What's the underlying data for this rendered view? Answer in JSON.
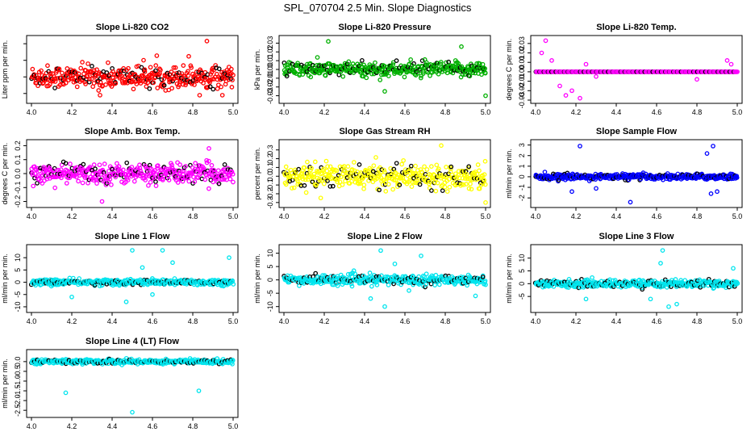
{
  "title": "SPL_070704  2.5 Min. Slope Diagnostics",
  "chart_data": [
    {
      "id": "p1",
      "type": "scatter",
      "title": "Slope Li-820 CO2",
      "ylabel": "Liter ppm per min.",
      "color": "#ff0000",
      "xlim": [
        4.0,
        5.0
      ],
      "ylim": [
        -0.7,
        1.15
      ],
      "yticks": [
        -0.5,
        0.0,
        0.5,
        1.0
      ],
      "ytick_labels": [
        "",
        "",
        "",
        ""
      ],
      "xticks": [
        4.0,
        4.2,
        4.4,
        4.6,
        4.8,
        5.0
      ],
      "xtick_labels": [
        "4.0",
        "4.2",
        "4.4",
        "4.6",
        "4.8",
        "5.0"
      ],
      "spread": 0.28,
      "n": 420,
      "outliers": [
        [
          4.87,
          1.08
        ],
        [
          4.78,
          0.62
        ],
        [
          4.34,
          -0.55
        ]
      ]
    },
    {
      "id": "p2",
      "type": "scatter",
      "title": "Slope Li-820 Pressure",
      "ylabel": "kPa per min.",
      "color": "#00b000",
      "xlim": [
        4.0,
        5.0
      ],
      "ylim": [
        -0.035,
        0.035
      ],
      "yticks": [
        -0.03,
        -0.02,
        -0.01,
        0.0,
        0.01,
        0.02,
        0.03
      ],
      "ytick_labels": [
        "-0.03",
        "-0.02",
        "-0.01",
        "0.00",
        "0.01",
        "0.02",
        "0.03"
      ],
      "xticks": [
        4.0,
        4.2,
        4.4,
        4.6,
        4.8,
        5.0
      ],
      "xtick_labels": [
        "4.0",
        "4.2",
        "4.4",
        "4.6",
        "4.8",
        "5.0"
      ],
      "spread": 0.007,
      "n": 420,
      "outliers": [
        [
          4.22,
          0.032
        ],
        [
          4.88,
          0.026
        ],
        [
          5.0,
          -0.03
        ],
        [
          4.5,
          -0.025
        ]
      ]
    },
    {
      "id": "p3",
      "type": "scatter",
      "title": "Slope Li-820 Temp.",
      "ylabel": "degrees C per min.",
      "color": "#ff00ff",
      "xlim": [
        4.0,
        5.0
      ],
      "ylim": [
        -0.03,
        0.035
      ],
      "yticks": [
        -0.03,
        -0.02,
        -0.01,
        0.0,
        0.01,
        0.02,
        0.03
      ],
      "ytick_labels": [
        "-0.03",
        "-0.02",
        "-0.01",
        "0.00",
        "0.01",
        "0.02",
        "0.03"
      ],
      "xticks": [
        4.0,
        4.2,
        4.4,
        4.6,
        4.8,
        5.0
      ],
      "xtick_labels": [
        "4.0",
        "4.2",
        "4.4",
        "4.6",
        "4.8",
        "5.0"
      ],
      "spread": 0.0,
      "n": 300,
      "outliers": [
        [
          4.05,
          0.033
        ],
        [
          4.03,
          0.02
        ],
        [
          4.08,
          0.012
        ],
        [
          4.15,
          -0.025
        ],
        [
          4.18,
          -0.02
        ],
        [
          4.22,
          -0.028
        ],
        [
          4.25,
          0.008
        ],
        [
          4.3,
          -0.005
        ],
        [
          4.12,
          -0.015
        ],
        [
          4.8,
          -0.008
        ],
        [
          4.95,
          0.012
        ],
        [
          4.97,
          0.008
        ]
      ]
    },
    {
      "id": "p4",
      "type": "scatter",
      "title": "Slope Amb. Box Temp.",
      "ylabel": "degrees C per min.",
      "color": "#ff00ff",
      "xlim": [
        4.0,
        5.0
      ],
      "ylim": [
        -0.22,
        0.22
      ],
      "yticks": [
        -0.2,
        -0.1,
        0.0,
        0.1,
        0.2
      ],
      "ytick_labels": [
        "-0.2",
        "-0.1",
        "0.0",
        "0.1",
        "0.2"
      ],
      "xticks": [
        4.0,
        4.2,
        4.4,
        4.6,
        4.8,
        5.0
      ],
      "xtick_labels": [
        "4.0",
        "4.2",
        "4.4",
        "4.6",
        "4.8",
        "5.0"
      ],
      "spread": 0.06,
      "n": 420,
      "outliers": [
        [
          4.35,
          -0.2
        ],
        [
          4.88,
          0.18
        ]
      ]
    },
    {
      "id": "p5",
      "type": "scatter",
      "title": "Slope Gas Stream RH",
      "ylabel": "percent per min.",
      "color": "#ffff00",
      "xlim": [
        4.0,
        5.0
      ],
      "ylim": [
        -0.32,
        0.38
      ],
      "yticks": [
        -0.3,
        -0.2,
        -0.1,
        0.0,
        0.1,
        0.2,
        0.3
      ],
      "ytick_labels": [
        "-0.3",
        "-0.2",
        "-0.1",
        "0.0",
        "0.1",
        "0.2",
        "0.3"
      ],
      "xticks": [
        4.0,
        4.2,
        4.4,
        4.6,
        4.8,
        5.0
      ],
      "xtick_labels": [
        "4.0",
        "4.2",
        "4.4",
        "4.6",
        "4.8",
        "5.0"
      ],
      "spread": 0.11,
      "n": 420,
      "outliers": [
        [
          5.0,
          -0.3
        ],
        [
          4.78,
          0.35
        ]
      ]
    },
    {
      "id": "p6",
      "type": "scatter",
      "title": "Slope Sample Flow",
      "ylabel": "ml/min per min.",
      "color": "#0000ff",
      "xlim": [
        4.0,
        5.0
      ],
      "ylim": [
        -2.6,
        3.2
      ],
      "yticks": [
        -2,
        -1,
        0,
        1,
        2,
        3
      ],
      "ytick_labels": [
        "-2",
        "-1",
        "0",
        "1",
        "2",
        "3"
      ],
      "xticks": [
        4.0,
        4.2,
        4.4,
        4.6,
        4.8,
        5.0
      ],
      "xtick_labels": [
        "4.0",
        "4.2",
        "4.4",
        "4.6",
        "4.8",
        "5.0"
      ],
      "spread": 0.22,
      "n": 420,
      "outliers": [
        [
          4.22,
          2.9
        ],
        [
          4.88,
          2.9
        ],
        [
          4.85,
          2.2
        ],
        [
          4.18,
          -1.4
        ],
        [
          4.47,
          -2.4
        ],
        [
          4.9,
          -1.4
        ],
        [
          4.87,
          -1.6
        ],
        [
          4.3,
          -1.1
        ]
      ]
    },
    {
      "id": "p7",
      "type": "scatter",
      "title": "Slope Line 1 Flow",
      "ylabel": "ml/min per min.",
      "color": "#00e5ee",
      "xlim": [
        4.0,
        5.0
      ],
      "ylim": [
        -11,
        14
      ],
      "yticks": [
        -10,
        -5,
        0,
        5,
        10
      ],
      "ytick_labels": [
        "-10",
        "-5",
        "0",
        "5",
        "10"
      ],
      "xticks": [
        4.0,
        4.2,
        4.4,
        4.6,
        4.8,
        5.0
      ],
      "xtick_labels": [
        "4.0",
        "4.2",
        "4.4",
        "4.6",
        "4.8",
        "5.0"
      ],
      "spread": 1.0,
      "n": 420,
      "outliers": [
        [
          4.5,
          13
        ],
        [
          4.65,
          13
        ],
        [
          4.47,
          -8
        ],
        [
          4.2,
          -6
        ],
        [
          4.98,
          10
        ],
        [
          4.55,
          6
        ],
        [
          4.6,
          -5
        ],
        [
          4.7,
          8
        ]
      ]
    },
    {
      "id": "p8",
      "type": "scatter",
      "title": "Slope Line 2 Flow",
      "ylabel": "ml/min per min.",
      "color": "#00e5ee",
      "xlim": [
        4.0,
        5.0
      ],
      "ylim": [
        -11,
        12
      ],
      "yticks": [
        -10,
        -5,
        0,
        5,
        10
      ],
      "ytick_labels": [
        "-10",
        "-5",
        "0",
        "5",
        "10"
      ],
      "xticks": [
        4.0,
        4.2,
        4.4,
        4.6,
        4.8,
        5.0
      ],
      "xtick_labels": [
        "4.0",
        "4.2",
        "4.4",
        "4.6",
        "4.8",
        "5.0"
      ],
      "spread": 1.5,
      "n": 420,
      "outliers": [
        [
          4.48,
          11
        ],
        [
          4.5,
          -10
        ],
        [
          4.68,
          9
        ],
        [
          4.43,
          -7
        ],
        [
          4.55,
          6
        ],
        [
          4.95,
          -6
        ],
        [
          4.62,
          -4
        ]
      ]
    },
    {
      "id": "p9",
      "type": "scatter",
      "title": "Slope Line 3 Flow",
      "ylabel": "ml/min per min.",
      "color": "#00e5ee",
      "xlim": [
        4.0,
        5.0
      ],
      "ylim": [
        -10,
        14
      ],
      "yticks": [
        -5,
        0,
        5,
        10
      ],
      "ytick_labels": [
        "-5",
        "0",
        "5",
        "10"
      ],
      "xticks": [
        4.0,
        4.2,
        4.4,
        4.6,
        4.8,
        5.0
      ],
      "xtick_labels": [
        "4.0",
        "4.2",
        "4.4",
        "4.6",
        "4.8",
        "5.0"
      ],
      "spread": 1.2,
      "n": 420,
      "outliers": [
        [
          4.63,
          13
        ],
        [
          4.66,
          -9
        ],
        [
          4.7,
          -8
        ],
        [
          4.57,
          -6
        ],
        [
          4.62,
          8
        ],
        [
          4.25,
          -6
        ],
        [
          4.98,
          6
        ]
      ]
    },
    {
      "id": "p10",
      "type": "scatter",
      "title": "Slope Line 4 (LT) Flow",
      "ylabel": "ml/min per min.",
      "color": "#00e5ee",
      "xlim": [
        4.0,
        5.0
      ],
      "ylim": [
        -2.7,
        0.45
      ],
      "yticks": [
        -2.5,
        -2.0,
        -1.5,
        -1.0,
        -0.5,
        0.0
      ],
      "ytick_labels": [
        "-2.5",
        "-2.0",
        "-1.5",
        "-1.0",
        "-0.5",
        "0.0"
      ],
      "xticks": [
        4.0,
        4.2,
        4.4,
        4.6,
        4.8,
        5.0
      ],
      "xtick_labels": [
        "4.0",
        "4.2",
        "4.4",
        "4.6",
        "4.8",
        "5.0"
      ],
      "spread": 0.1,
      "n": 420,
      "outliers": [
        [
          4.17,
          -1.6
        ],
        [
          4.83,
          -1.5
        ],
        [
          4.5,
          -2.6
        ]
      ]
    }
  ]
}
